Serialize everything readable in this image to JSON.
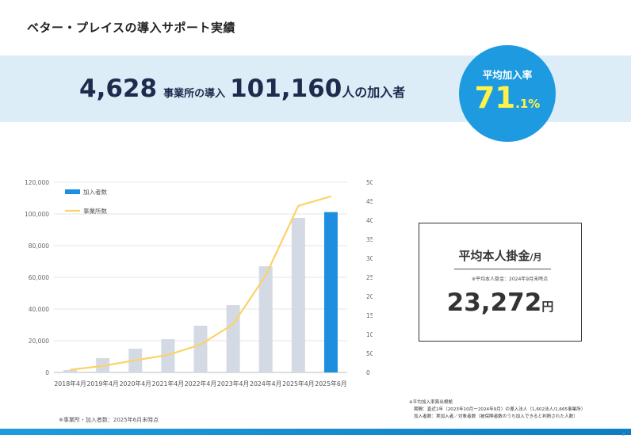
{
  "page": {
    "title": "ベター・プレイスの導入サポート実績",
    "page_number": "2"
  },
  "banner": {
    "companies_value": "4,628",
    "companies_label": "事業所の導入",
    "members_value": "101,160",
    "members_label": "人の加入者"
  },
  "rate": {
    "label": "平均加入率",
    "value_int": "71",
    "value_dec": ".1%"
  },
  "avg_contribution": {
    "title": "平均本人掛金",
    "unit_suffix": "/月",
    "note": "※平均本人掛金：2024年9月末時点",
    "value": "23,272",
    "currency": "円"
  },
  "notes": {
    "left": "※事業所・加入者数：2025年6月末時点",
    "right_1": "※平均加入率算出根拠",
    "right_2": "期間：直近1年（2023年10月ー2024年9月）の導入法人（1,602法人/1,665事業所）",
    "right_3": "加入者数：実加入者／対象者数（被保険者数のうち加入できると判断された人数）"
  },
  "chart_data": {
    "type": "bar",
    "categories": [
      "2018年4月",
      "2019年4月",
      "2020年4月",
      "2021年4月",
      "2022年4月",
      "2023年4月",
      "2024年4月",
      "2025年4月",
      "2025年6月"
    ],
    "series": [
      {
        "name": "加入者数",
        "type": "bar",
        "axis": "left",
        "values": [
          1500,
          9000,
          15000,
          21000,
          29500,
          42500,
          67000,
          97500,
          101160
        ],
        "color": "#d3dae4",
        "highlight_color": "#1e8fde"
      },
      {
        "name": "事業所数",
        "type": "line",
        "axis": "right",
        "values": [
          70,
          170,
          320,
          460,
          730,
          1270,
          2550,
          4380,
          4628
        ],
        "color": "#fdd26a"
      }
    ],
    "ylim_left": [
      0,
      120000
    ],
    "yticks_left": [
      "0",
      "20,000",
      "40,000",
      "60,000",
      "80,000",
      "100,000",
      "120,000"
    ],
    "ylim_right": [
      0,
      5000
    ],
    "yticks_right": [
      "0",
      "500",
      "1000",
      "1500",
      "2000",
      "2500",
      "3000",
      "3500",
      "4000",
      "4500",
      "5000"
    ],
    "legend": [
      {
        "label": "加入者数",
        "kind": "bar"
      },
      {
        "label": "事業所数",
        "kind": "line"
      }
    ],
    "legend_position": "top-left",
    "grid": "horizontal"
  }
}
